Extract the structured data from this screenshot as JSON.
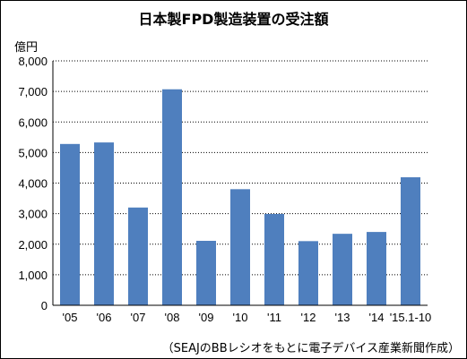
{
  "chart_data": {
    "type": "bar",
    "title": "日本製FPD製造装置の受注額",
    "ylabel": "億円",
    "xlabel": "",
    "categories": [
      "'05",
      "'06",
      "'07",
      "'08",
      "'09",
      "'10",
      "'11",
      "'12",
      "'13",
      "'14",
      "'15.1-10"
    ],
    "values": [
      5280,
      5330,
      3200,
      7070,
      2110,
      3800,
      2990,
      2100,
      2340,
      2400,
      4190
    ],
    "ylim": [
      0,
      8000
    ],
    "yticks": [
      0,
      1000,
      2000,
      3000,
      4000,
      5000,
      6000,
      7000,
      8000
    ],
    "ytick_labels": [
      "0",
      "1,000",
      "2,000",
      "3,000",
      "4,000",
      "5,000",
      "6,000",
      "7,000",
      "8,000"
    ],
    "grid": "horizontal-dotted",
    "bar_color": "#4f7fbe",
    "source_note": "（SEAJのBBレシオをもとに電子デバイス産業新聞作成）"
  }
}
